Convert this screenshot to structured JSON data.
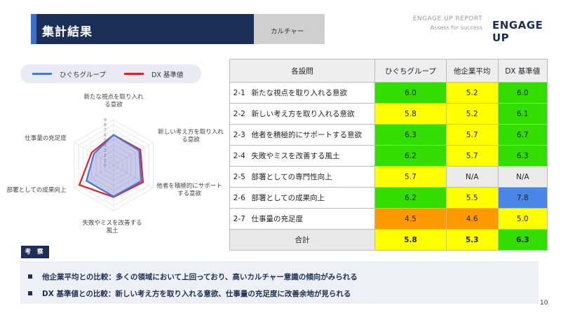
{
  "header": {
    "title": "集計結果",
    "tab": "カルチャー",
    "report_name": "ENGAGE UP REPORT",
    "report_sub": "Assess for success",
    "logo": "ENGAGE UP"
  },
  "legend": {
    "series1": "ひぐちグループ",
    "series2": "DX 基準値"
  },
  "colors": {
    "series1": "#4a78d8",
    "series2": "#e0202a",
    "green": "#33dd00",
    "yellow": "#ffff00",
    "orange": "#ff9900",
    "blue": "#4a86e8",
    "gray": "#ebebeb",
    "navy": "#1b2f57"
  },
  "table": {
    "headers": [
      "各設問",
      "ひぐちグループ",
      "他企業平均",
      "DX 基準値"
    ],
    "rows": [
      {
        "num": "2-1",
        "item": "新たな視点を取り入れる意欲",
        "v1": "6.0",
        "c1": "green",
        "v2": "5.2",
        "c2": "yellow",
        "v3": "6.0",
        "c3": "green"
      },
      {
        "num": "2-2",
        "item": "新しい考え方を取り入れる意欲",
        "v1": "5.8",
        "c1": "yellow",
        "v2": "5.2",
        "c2": "yellow",
        "v3": "6.1",
        "c3": "green"
      },
      {
        "num": "2-3",
        "item": "他者を積極的にサポートする意欲",
        "v1": "6.3",
        "c1": "green",
        "v2": "5.7",
        "c2": "yellow",
        "v3": "6.7",
        "c3": "green"
      },
      {
        "num": "2-4",
        "item": "失敗やミスを改善する風土",
        "v1": "6.2",
        "c1": "green",
        "v2": "5.7",
        "c2": "yellow",
        "v3": "6.3",
        "c3": "green"
      },
      {
        "num": "2-5",
        "item": "部署としての専門性向上",
        "v1": "5.7",
        "c1": "yellow",
        "v2": "N/A",
        "c2": "gray",
        "v3": "N/A",
        "c3": "gray"
      },
      {
        "num": "2-6",
        "item": "部署としての成果向上",
        "v1": "6.2",
        "c1": "green",
        "v2": "5.5",
        "c2": "yellow",
        "v3": "7.8",
        "c3": "blue"
      },
      {
        "num": "2-7",
        "item": "仕事量の充足度",
        "v1": "4.5",
        "c1": "orange",
        "v2": "4.6",
        "c2": "orange",
        "v3": "5.0",
        "c3": "yellow"
      }
    ],
    "total": {
      "label": "合計",
      "v1": "5.8",
      "c1": "yellow",
      "v2": "5.3",
      "c2": "yellow",
      "v3": "6.3",
      "c3": "green"
    }
  },
  "insights": {
    "label": "考 察",
    "items": [
      "他企業平均との比較：多くの領域において上回っており、高いカルチャー意識の傾向がみられる",
      "DX 基準値との比較：新しい考え方を取り入れる意欲、仕事量の充足度に改善余地が見られる"
    ]
  },
  "page_number": "10",
  "chart_data": {
    "type": "radar",
    "axes": [
      [
        "新たな視点を取り入れ",
        "る意欲"
      ],
      [
        "新しい考え方を取り入れ",
        "る意欲"
      ],
      [
        "他者を積極的にサポート",
        "する意欲"
      ],
      [
        "失敗やミスを改善する",
        "風土"
      ],
      [
        "部署としての成果向上"
      ],
      [
        "仕事量の充足度"
      ]
    ],
    "ticks": [
      "0",
      "1",
      "2",
      "3",
      "4",
      "5",
      "6",
      "7",
      "8",
      "9"
    ],
    "rmax": 9,
    "series": [
      {
        "name": "ひぐちグループ",
        "values": [
          6.0,
          5.8,
          6.3,
          6.2,
          6.2,
          4.5
        ]
      },
      {
        "name": "DX 基準値",
        "values": [
          6.0,
          6.1,
          6.7,
          6.3,
          7.8,
          5.0
        ]
      }
    ]
  }
}
